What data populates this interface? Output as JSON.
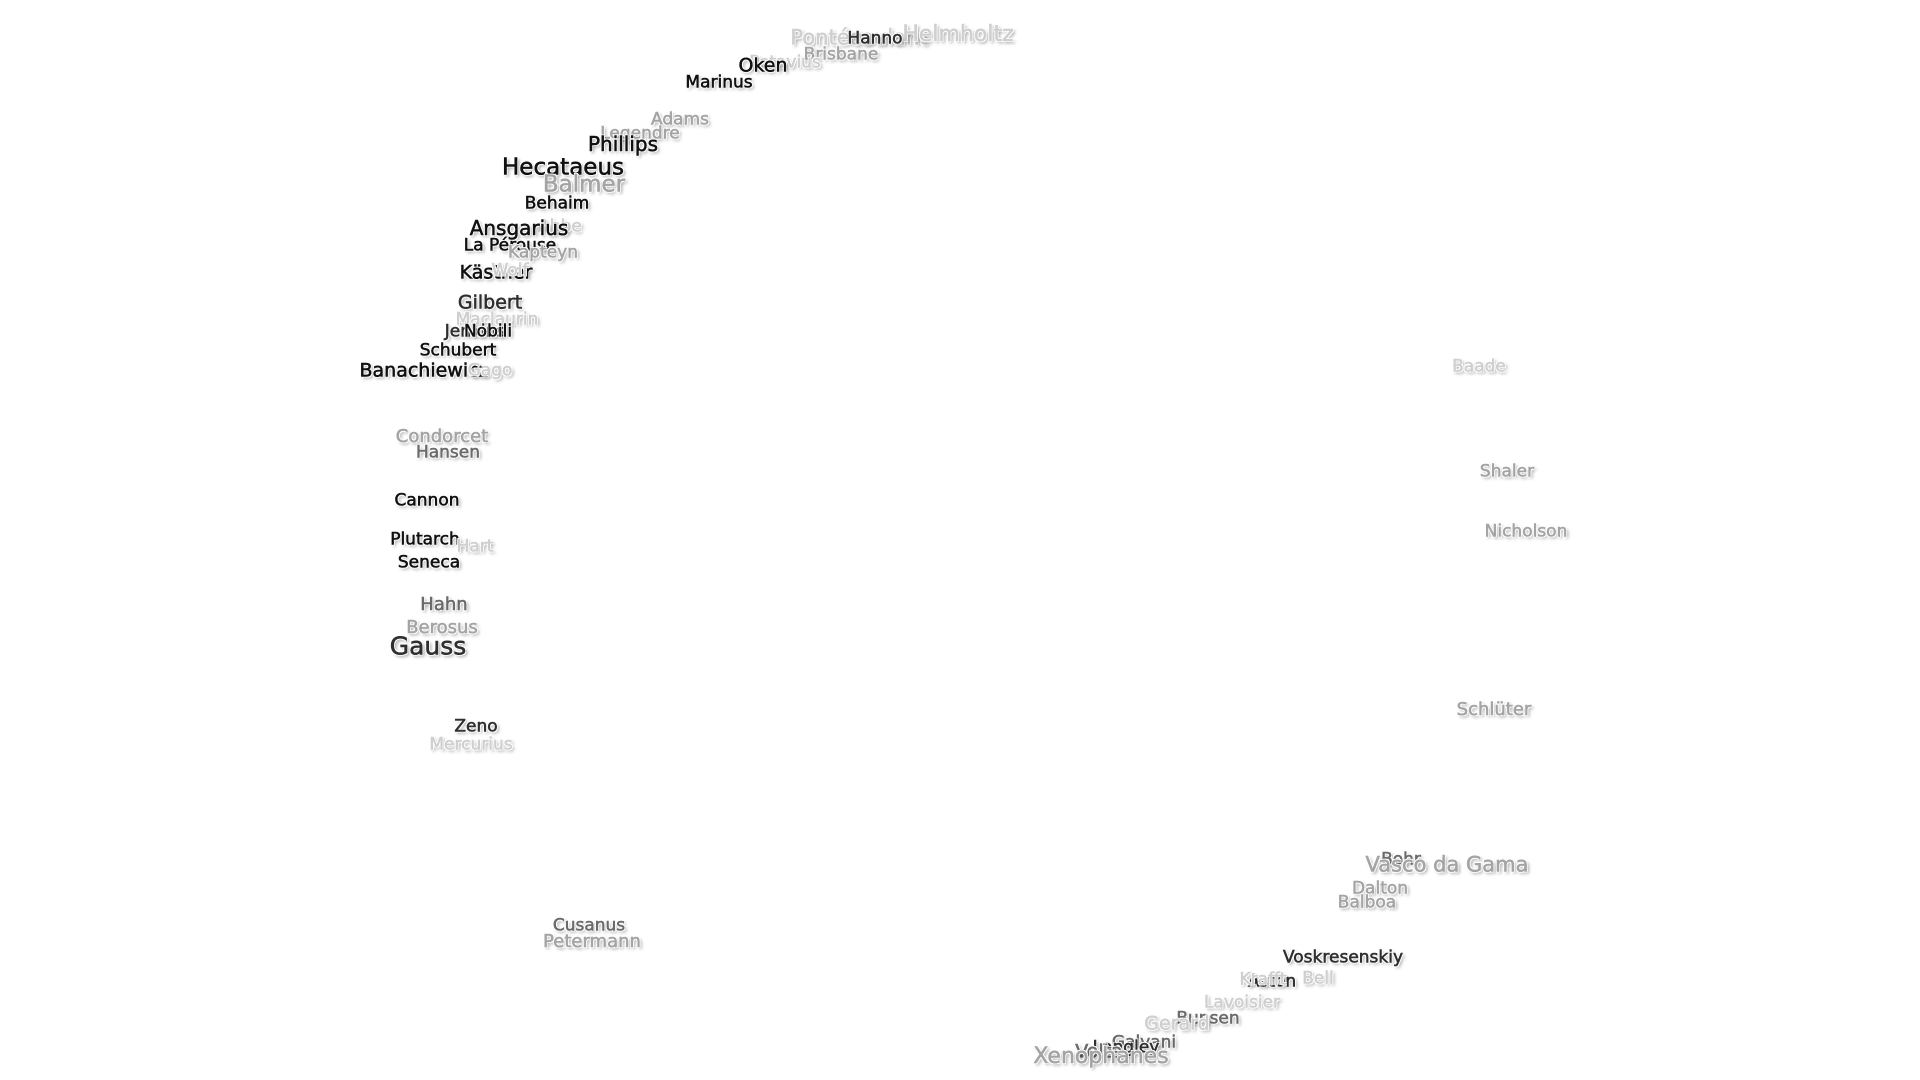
{
  "labels": [
    {
      "text": "Pontécoulant",
      "tone": "t4"
    },
    {
      "text": "Helmholtz",
      "tone": "t4"
    },
    {
      "text": "Hanno",
      "tone": "t1"
    },
    {
      "text": "Brisbane",
      "tone": "t3"
    },
    {
      "text": "Petavius",
      "tone": "t4"
    },
    {
      "text": "Oken",
      "tone": "t0"
    },
    {
      "text": "Marinus",
      "tone": "t0"
    },
    {
      "text": "Adams",
      "tone": "t3"
    },
    {
      "text": "Legendre",
      "tone": "t3"
    },
    {
      "text": "Phillips",
      "tone": "t0"
    },
    {
      "text": "Hecataeus",
      "tone": "t0"
    },
    {
      "text": "Balmer",
      "tone": "t3"
    },
    {
      "text": "Behaim",
      "tone": "t0"
    },
    {
      "text": "Abbe",
      "tone": "t4"
    },
    {
      "text": "Ansgarius",
      "tone": "t0"
    },
    {
      "text": "La Pérouse",
      "tone": "t0"
    },
    {
      "text": "Kapteyn",
      "tone": "t3"
    },
    {
      "text": "Kästner",
      "tone": "t0"
    },
    {
      "text": "Wolf",
      "tone": "t4"
    },
    {
      "text": "Gilbert",
      "tone": "t1"
    },
    {
      "text": "Maclaurin",
      "tone": "t4"
    },
    {
      "text": "Jenkins",
      "tone": "t1"
    },
    {
      "text": "Nobili",
      "tone": "t0"
    },
    {
      "text": "Schubert",
      "tone": "t0"
    },
    {
      "text": "Banachiewicz",
      "tone": "t0"
    },
    {
      "text": "Gago",
      "tone": "t4"
    },
    {
      "text": "Condorcet",
      "tone": "t3"
    },
    {
      "text": "Hansen",
      "tone": "t2"
    },
    {
      "text": "Cannon",
      "tone": "t0"
    },
    {
      "text": "Plutarch",
      "tone": "t0"
    },
    {
      "text": "Seneca",
      "tone": "t0"
    },
    {
      "text": "Hart",
      "tone": "t4"
    },
    {
      "text": "Hahn",
      "tone": "t2"
    },
    {
      "text": "Berosus",
      "tone": "t3"
    },
    {
      "text": "Gauss",
      "tone": "t1"
    },
    {
      "text": "Zeno",
      "tone": "t1"
    },
    {
      "text": "Mercurius",
      "tone": "t4"
    },
    {
      "text": "Cusanus",
      "tone": "t2"
    },
    {
      "text": "Petermann",
      "tone": "t3"
    },
    {
      "text": "Baade",
      "tone": "t4"
    },
    {
      "text": "Shaler",
      "tone": "t3"
    },
    {
      "text": "Nicholson",
      "tone": "t3"
    },
    {
      "text": "Schlüter",
      "tone": "t3"
    },
    {
      "text": "Bohr",
      "tone": "t2"
    },
    {
      "text": "Vasco da Gama",
      "tone": "t3"
    },
    {
      "text": "Dalton",
      "tone": "t3"
    },
    {
      "text": "Balboa",
      "tone": "t3"
    },
    {
      "text": "Voskresenskiy",
      "tone": "t1"
    },
    {
      "text": "Aston",
      "tone": "t1"
    },
    {
      "text": "Krafft",
      "tone": "t4"
    },
    {
      "text": "Bell",
      "tone": "t4"
    },
    {
      "text": "Lavoisier",
      "tone": "t4"
    },
    {
      "text": "Bunsen",
      "tone": "t2"
    },
    {
      "text": "Gerard",
      "tone": "t4"
    },
    {
      "text": "Galvani",
      "tone": "t2"
    },
    {
      "text": "Langley",
      "tone": "t1"
    },
    {
      "text": "Volta",
      "tone": "t2"
    },
    {
      "text": "Xenophanes",
      "tone": "t3"
    }
  ]
}
